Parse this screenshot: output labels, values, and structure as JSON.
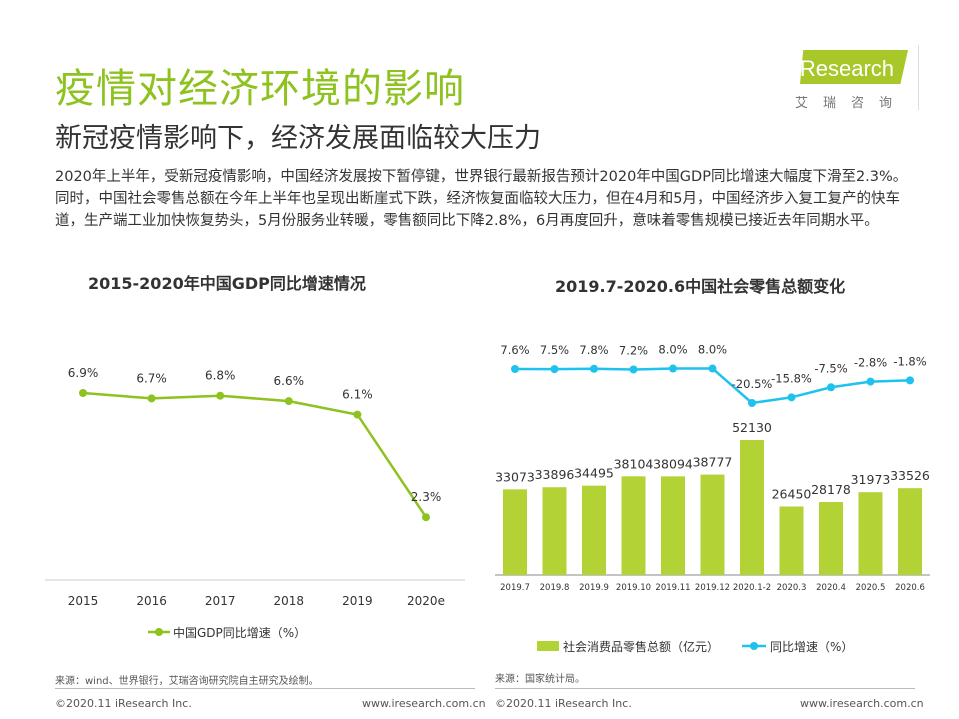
{
  "header": {
    "title": "疫情对经济环境的影响",
    "subtitle": "新冠疫情影响下，经济发展面临较大压力",
    "paragraph": "2020年上半年，受新冠疫情影响，中国经济发展按下暂停键，世界银行最新报告预计2020年中国GDP同比增速大幅度下滑至2.3%。同时，中国社会零售总额在今年上半年也呈现出断崖式下跌，经济恢复面临较大压力，但在4月和5月，中国经济步入复工复产的快车道，生产端工业加快恢复势头，5月份服务业转暖，零售额同比下降2.8%，6月再度回升，意味着零售规模已接近去年同期水平。"
  },
  "logo": {
    "text": "iResearch",
    "cn": "艾瑞咨询"
  },
  "colors": {
    "green": "#8dc21f",
    "bar": "#b3d235",
    "line": "#1fc1ee"
  },
  "chart_data": [
    {
      "type": "line",
      "title": "2015-2020年中国GDP同比增速情况",
      "categories": [
        "2015",
        "2016",
        "2017",
        "2018",
        "2019",
        "2020e"
      ],
      "series": [
        {
          "name": "中国GDP同比增速（%）",
          "values": [
            6.9,
            6.7,
            6.8,
            6.6,
            6.1,
            2.3
          ],
          "labels": [
            "6.9%",
            "6.7%",
            "6.8%",
            "6.6%",
            "6.1%",
            "2.3%"
          ]
        }
      ],
      "legend": "bottom"
    },
    {
      "type": "bar+line",
      "title": "2019.7-2020.6中国社会零售总额变化",
      "categories": [
        "2019.7",
        "2019.8",
        "2019.9",
        "2019.10",
        "2019.11",
        "2019.12",
        "2020.1-2",
        "2020.3",
        "2020.4",
        "2020.5",
        "2020.6"
      ],
      "series": [
        {
          "name": "社会消费品零售总额（亿元）",
          "type": "bar",
          "values": [
            33073,
            33896,
            34495,
            38104,
            38094,
            38777,
            52130,
            26450,
            28178,
            31973,
            33526
          ]
        },
        {
          "name": "同比增速（%）",
          "type": "line",
          "values": [
            7.6,
            7.5,
            7.8,
            7.2,
            8.0,
            8.0,
            -20.5,
            -15.8,
            -7.5,
            -2.8,
            -1.8
          ],
          "labels": [
            "7.6%",
            "7.5%",
            "7.8%",
            "7.2%",
            "8.0%",
            "8.0%",
            "-20.5%",
            "-15.8%",
            "-7.5%",
            "-2.8%",
            "-1.8%"
          ]
        }
      ],
      "legend": "bottom"
    }
  ],
  "left_footer": {
    "source": "来源：wind、世界银行，艾瑞咨询研究院自主研究及绘制。",
    "copyright": "©2020.11 iResearch Inc.",
    "site": "www.iresearch.com.cn"
  },
  "right_footer": {
    "source": "来源：国家统计局。",
    "copyright": "©2020.11 iResearch Inc.",
    "site": "www.iresearch.com.cn"
  }
}
